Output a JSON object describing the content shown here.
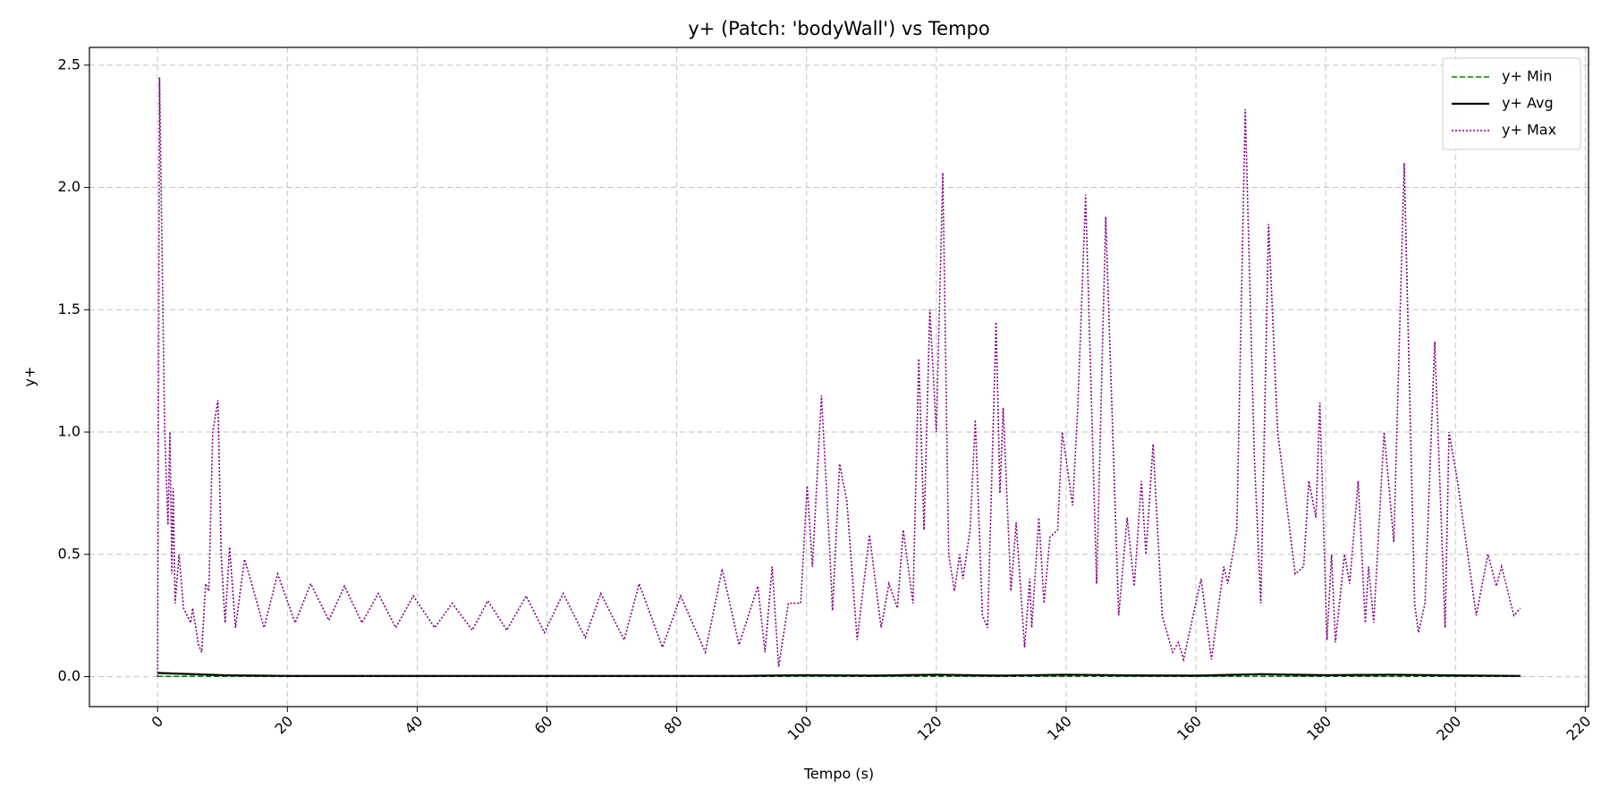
{
  "chart_data": {
    "type": "line",
    "title": "y+ (Patch: 'bodyWall') vs Tempo",
    "xlabel": "Tempo (s)",
    "ylabel": "y+",
    "xlim": [
      -10.5,
      220.5
    ],
    "ylim": [
      -0.1225,
      2.5725
    ],
    "xticks": [
      0,
      20,
      40,
      60,
      80,
      100,
      120,
      140,
      160,
      180,
      200,
      220
    ],
    "yticks": [
      {
        "value": 0,
        "label": "0.0"
      },
      0.5,
      {
        "value": 1,
        "label": "1.0"
      },
      1.5,
      {
        "value": 2,
        "label": "2.0"
      },
      2.5
    ],
    "grid": true,
    "legend": "upper right",
    "series": [
      {
        "name": "y+ Min",
        "color": "#008000",
        "linestyle": "dashed",
        "x": [
          0,
          10,
          20,
          30,
          40,
          50,
          60,
          70,
          80,
          90,
          100,
          110,
          120,
          130,
          140,
          150,
          160,
          170,
          180,
          190,
          200,
          210
        ],
        "values": [
          0.001,
          0.001,
          0.001,
          0.001,
          0.001,
          0.001,
          0.001,
          0.001,
          0.001,
          0.001,
          0.001,
          0.001,
          0.001,
          0.001,
          0.001,
          0.001,
          0.001,
          0.001,
          0.001,
          0.001,
          0.001,
          0.001
        ]
      },
      {
        "name": "y+ Avg",
        "color": "#000000",
        "linestyle": "solid",
        "x": [
          0,
          10,
          20,
          30,
          40,
          50,
          60,
          70,
          80,
          90,
          100,
          110,
          120,
          130,
          140,
          150,
          160,
          170,
          180,
          190,
          200,
          210
        ],
        "values": [
          0.015,
          0.006,
          0.003,
          0.003,
          0.003,
          0.003,
          0.003,
          0.003,
          0.003,
          0.003,
          0.006,
          0.004,
          0.008,
          0.004,
          0.008,
          0.005,
          0.004,
          0.01,
          0.006,
          0.008,
          0.005,
          0.003
        ]
      },
      {
        "name": "y+ Max",
        "color": "#800080",
        "linestyle": "dotted",
        "x": [
          0,
          0.3,
          1.1,
          1.6,
          1.9,
          2.2,
          2.4,
          2.7,
          3.3,
          4,
          5.1,
          5.4,
          6.3,
          6.8,
          7.4,
          7.9,
          8.5,
          9.3,
          9.8,
          10.4,
          11.1,
          12,
          13.4,
          14.5,
          16.4,
          18.5,
          21.2,
          23.6,
          26.4,
          28.8,
          31.5,
          34,
          36.7,
          39.4,
          42.7,
          45.4,
          48.5,
          50.9,
          53.8,
          56.8,
          59.6,
          62.5,
          65.9,
          68.3,
          71.9,
          74.2,
          77.8,
          80.6,
          84.4,
          87,
          89.6,
          92.5,
          93.6,
          94.7,
          95.7,
          97.2,
          99.1,
          100.1,
          100.9,
          102.3,
          103.6,
          104,
          105.1,
          106.2,
          107.8,
          109.7,
          111.5,
          112.7,
          114,
          114.9,
          116.4,
          117.3,
          118.1,
          119,
          120,
          121,
          121.9,
          122.8,
          123.6,
          124.1,
          125.2,
          126,
          127.1,
          127.9,
          129.2,
          129.8,
          130.3,
          131.5,
          132.3,
          133.6,
          134.4,
          134.7,
          135.8,
          136.6,
          137.5,
          138.7,
          139.4,
          141,
          141.8,
          143,
          144.7,
          146.1,
          148.1,
          149.4,
          150.5,
          151.6,
          152.3,
          153.4,
          154.8,
          156.4,
          157.3,
          158.1,
          160.8,
          162.4,
          164.3,
          164.9,
          166.3,
          167.6,
          169,
          170,
          171.2,
          172.6,
          175.3,
          176.6,
          177.4,
          178.5,
          179.1,
          180.2,
          180.9,
          181.5,
          182.9,
          183.7,
          185,
          186.1,
          186.6,
          187.4,
          189,
          190.5,
          192.1,
          193.7,
          194.3,
          195.3,
          196.8,
          198.4,
          199,
          200.3,
          203.2,
          205,
          206.3,
          207.1,
          209,
          210
        ],
        "values": [
          0,
          2.45,
          1.0,
          0.62,
          1.0,
          0.42,
          0.77,
          0.3,
          0.5,
          0.28,
          0.22,
          0.28,
          0.13,
          0.1,
          0.38,
          0.35,
          1.0,
          1.13,
          0.5,
          0.22,
          0.53,
          0.2,
          0.48,
          0.38,
          0.2,
          0.42,
          0.22,
          0.38,
          0.23,
          0.37,
          0.22,
          0.34,
          0.2,
          0.33,
          0.2,
          0.3,
          0.19,
          0.31,
          0.19,
          0.33,
          0.18,
          0.34,
          0.16,
          0.34,
          0.15,
          0.38,
          0.12,
          0.33,
          0.1,
          0.44,
          0.13,
          0.37,
          0.1,
          0.45,
          0.04,
          0.3,
          0.3,
          0.78,
          0.45,
          1.15,
          0.5,
          0.27,
          0.87,
          0.72,
          0.15,
          0.58,
          0.2,
          0.38,
          0.28,
          0.6,
          0.3,
          1.3,
          0.6,
          1.5,
          1.0,
          2.06,
          0.5,
          0.35,
          0.5,
          0.4,
          0.6,
          1.05,
          0.25,
          0.2,
          1.45,
          0.75,
          1.1,
          0.35,
          0.63,
          0.12,
          0.4,
          0.2,
          0.65,
          0.3,
          0.57,
          0.6,
          1.0,
          0.7,
          1.1,
          1.97,
          0.38,
          1.88,
          0.25,
          0.65,
          0.37,
          0.8,
          0.5,
          0.95,
          0.25,
          0.1,
          0.14,
          0.07,
          0.4,
          0.07,
          0.45,
          0.38,
          0.6,
          2.32,
          0.9,
          0.3,
          1.85,
          1.0,
          0.42,
          0.45,
          0.8,
          0.65,
          1.12,
          0.15,
          0.5,
          0.14,
          0.5,
          0.38,
          0.8,
          0.22,
          0.45,
          0.22,
          1.0,
          0.55,
          2.1,
          0.3,
          0.18,
          0.3,
          1.37,
          0.2,
          1.0,
          0.8,
          0.25,
          0.5,
          0.37,
          0.45,
          0.25,
          0.28
        ]
      }
    ]
  }
}
